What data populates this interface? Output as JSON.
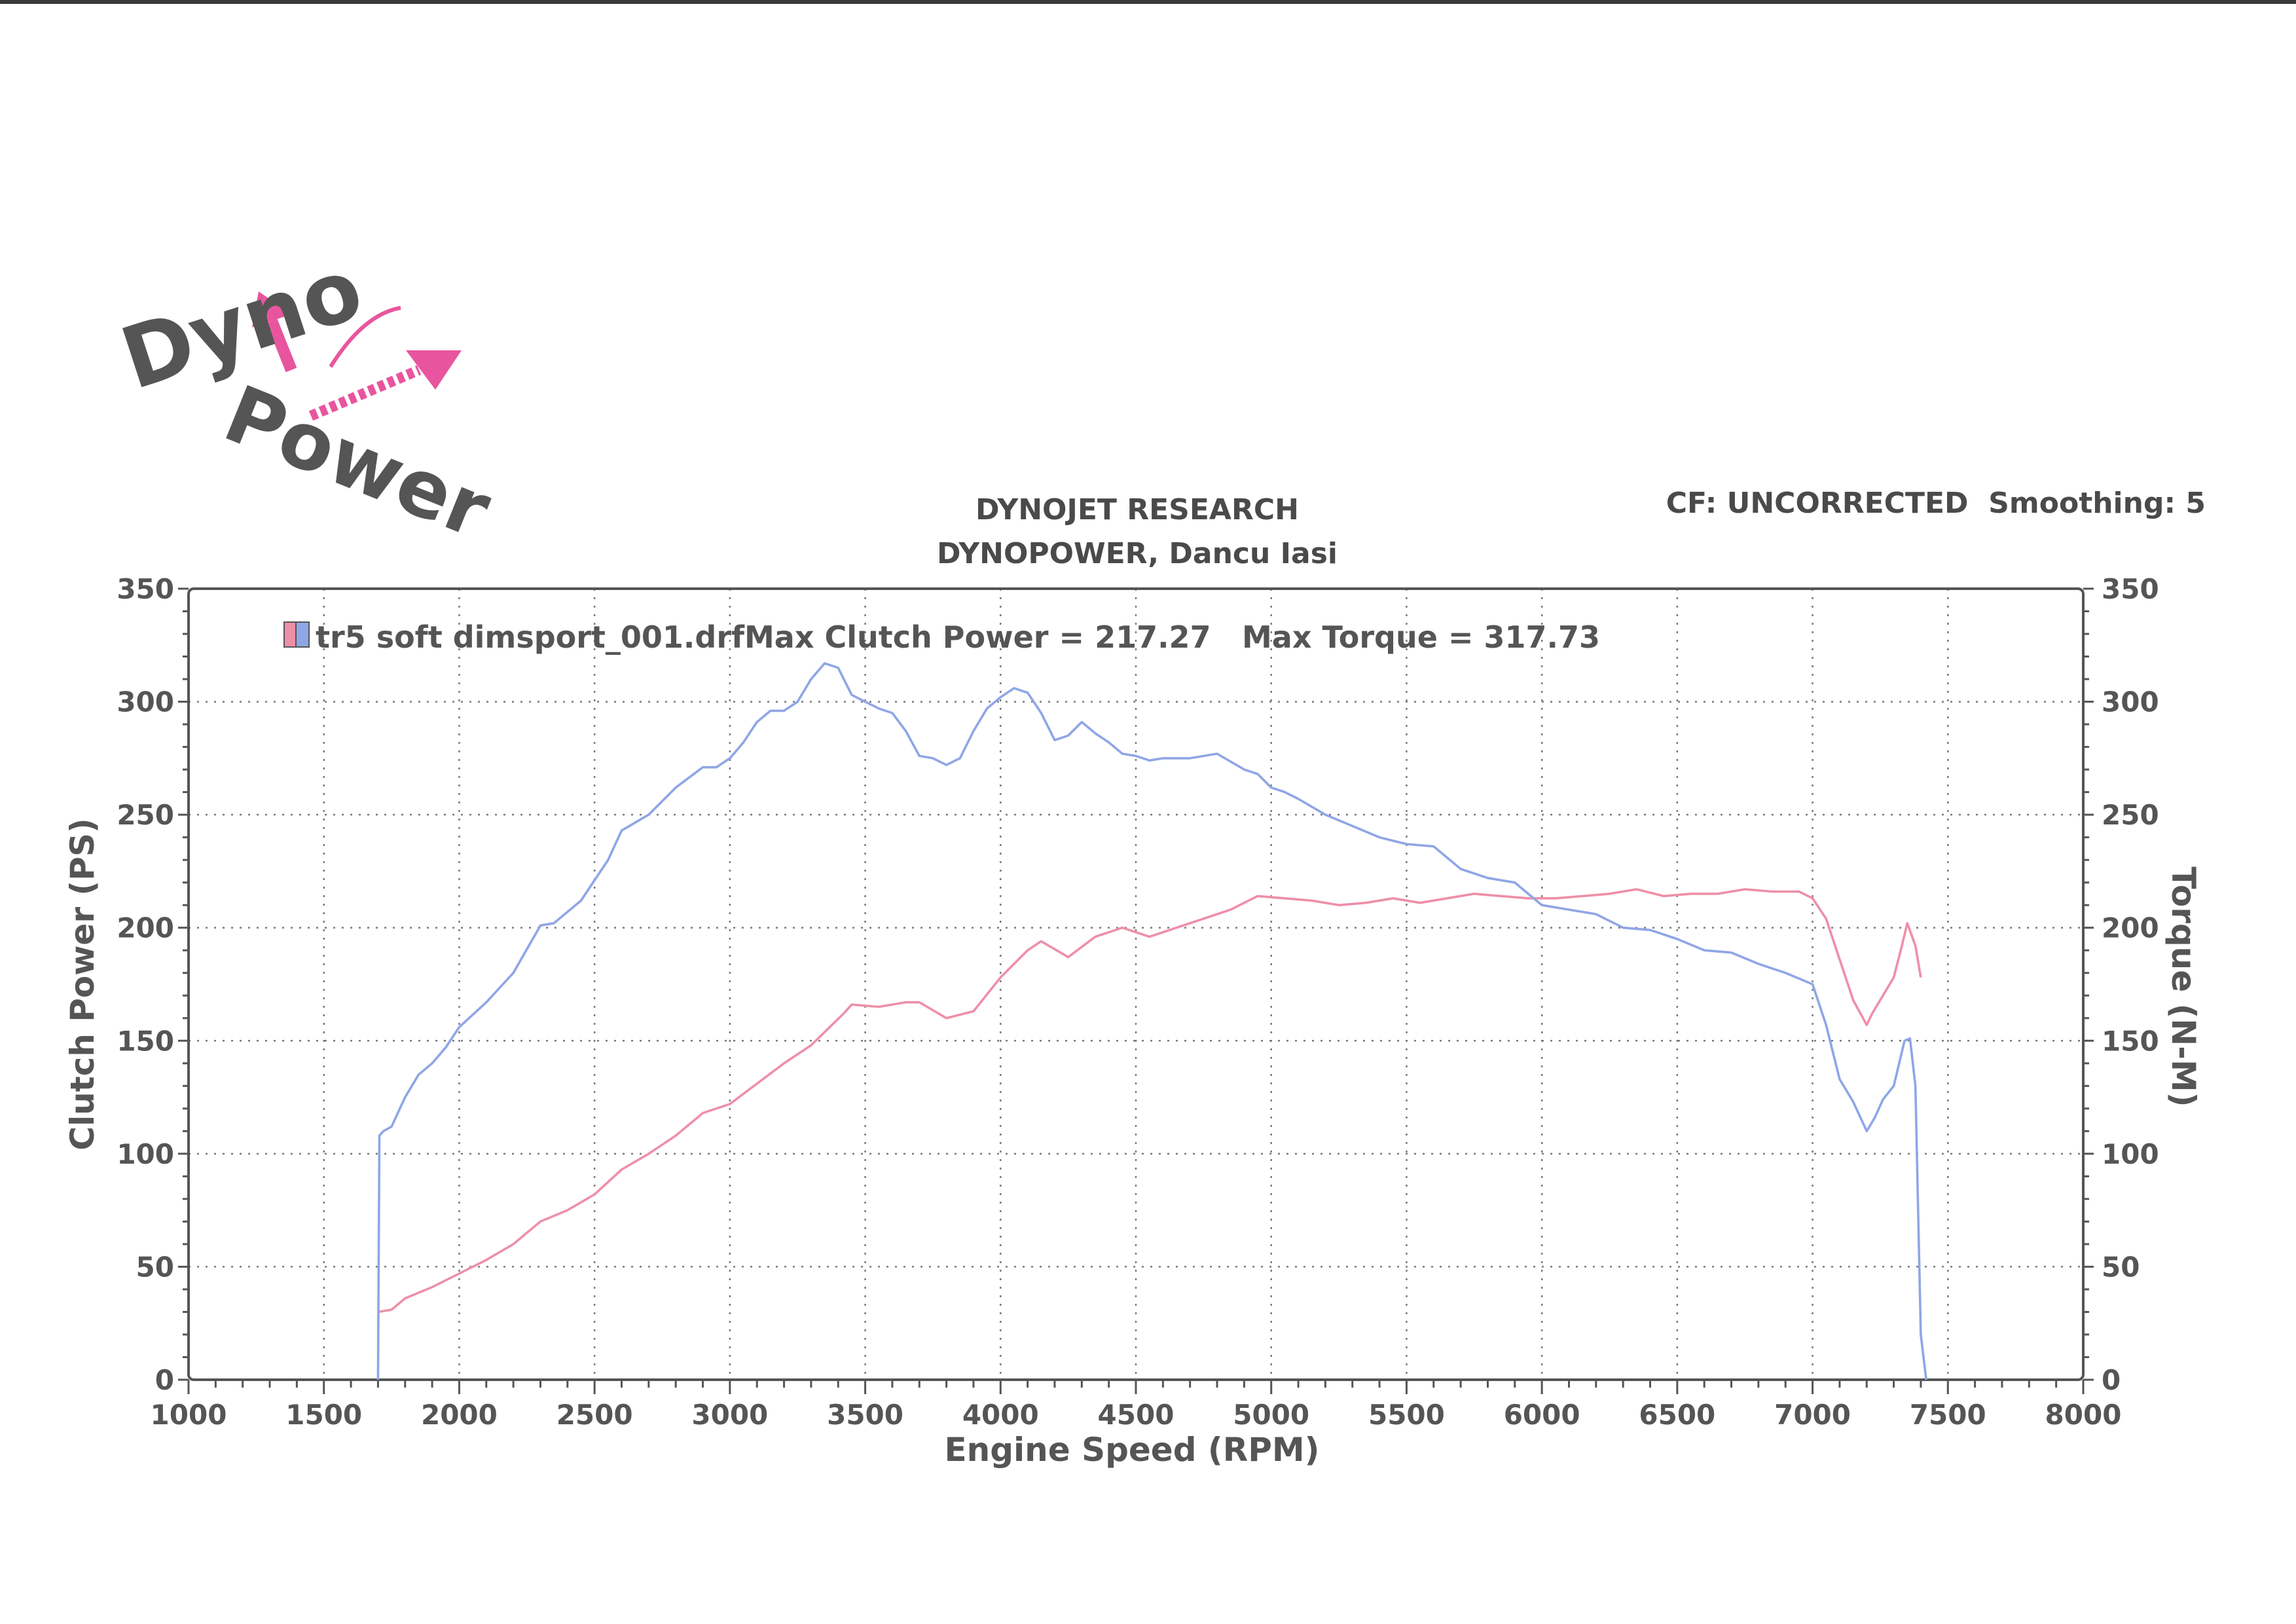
{
  "logo": {
    "text": "Dyno Power",
    "colors": {
      "text": "#555555",
      "arrows": "#e8559e"
    }
  },
  "header": {
    "title_line1": "DYNOJET RESEARCH",
    "title_line2": "DYNOPOWER, Dancu Iasi",
    "correction": "CF: UNCORRECTED  Smoothing: 5"
  },
  "legend": {
    "run_name": "tr5 soft dimsport_001.drf",
    "max_power_text": "Max Clutch Power = 217.27",
    "max_torque_text": "Max Torque = 317.73"
  },
  "colors": {
    "power": "#8fa6e6",
    "torque": "#ee8fa8",
    "axis": "#555555"
  },
  "chart_data": {
    "type": "line",
    "xlabel": "Engine Speed (RPM)",
    "ylabel": "Clutch Power (PS)",
    "y2label": "Torque (N-M)",
    "xlim": [
      1000,
      8000
    ],
    "ylim": [
      0,
      350
    ],
    "y2lim": [
      0,
      350
    ],
    "xticks": [
      "1000",
      "1500",
      "2000",
      "2500",
      "3000",
      "3500",
      "4000",
      "4500",
      "5000",
      "5500",
      "6000",
      "6500",
      "7000",
      "7500",
      "8000"
    ],
    "yticks": [
      "0",
      "50",
      "100",
      "150",
      "200",
      "250",
      "300",
      "350"
    ],
    "y2ticks": [
      "0",
      "50",
      "100",
      "150",
      "200",
      "250",
      "300",
      "350"
    ],
    "grid": true,
    "legend_position": "top-left",
    "series": [
      {
        "name": "Clutch Power",
        "axis": "left",
        "color": "#ee8fa8",
        "x": [
          1700,
          1750,
          1800,
          1900,
          2000,
          2100,
          2200,
          2300,
          2400,
          2500,
          2600,
          2700,
          2800,
          2900,
          3000,
          3100,
          3200,
          3300,
          3420,
          3450,
          3550,
          3650,
          3700,
          3800,
          3900,
          4000,
          4100,
          4150,
          4250,
          4350,
          4450,
          4550,
          4650,
          4750,
          4850,
          4950,
          5050,
          5150,
          5250,
          5350,
          5450,
          5550,
          5650,
          5750,
          5850,
          5950,
          6050,
          6150,
          6250,
          6350,
          6450,
          6550,
          6650,
          6750,
          6850,
          6950,
          7000,
          7050,
          7100,
          7150,
          7200,
          7220,
          7260,
          7300,
          7330,
          7350,
          7380,
          7400
        ],
        "y": [
          30,
          31,
          36,
          41,
          47,
          53,
          60,
          70,
          75,
          82,
          93,
          100,
          108,
          118,
          122,
          131,
          140,
          148,
          162,
          166,
          165,
          167,
          167,
          160,
          163,
          178,
          190,
          194,
          187,
          196,
          200,
          196,
          200,
          204,
          208,
          214,
          213,
          212,
          210,
          211,
          213,
          211,
          213,
          215,
          214,
          213,
          213,
          214,
          215,
          217,
          214,
          215,
          215,
          217,
          216,
          216,
          213,
          204,
          186,
          168,
          157,
          162,
          170,
          178,
          192,
          202,
          192,
          178
        ]
      },
      {
        "name": "Torque",
        "axis": "right",
        "color": "#8fa6e6",
        "x": [
          1700,
          1705,
          1720,
          1750,
          1800,
          1850,
          1900,
          1950,
          2000,
          2100,
          2200,
          2300,
          2350,
          2450,
          2500,
          2550,
          2600,
          2700,
          2800,
          2900,
          2950,
          3000,
          3050,
          3100,
          3150,
          3200,
          3250,
          3300,
          3350,
          3400,
          3450,
          3500,
          3550,
          3600,
          3650,
          3700,
          3750,
          3800,
          3850,
          3900,
          3950,
          4000,
          4050,
          4100,
          4150,
          4200,
          4250,
          4300,
          4350,
          4400,
          4450,
          4500,
          4550,
          4600,
          4700,
          4800,
          4900,
          4950,
          5000,
          5050,
          5100,
          5200,
          5300,
          5400,
          5500,
          5600,
          5700,
          5800,
          5900,
          6000,
          6100,
          6200,
          6300,
          6400,
          6500,
          6600,
          6700,
          6800,
          6900,
          7000,
          7050,
          7100,
          7150,
          7200,
          7230,
          7260,
          7300,
          7340,
          7360,
          7380,
          7400,
          7420
        ],
        "y": [
          0,
          108,
          110,
          112,
          125,
          135,
          140,
          147,
          156,
          167,
          180,
          201,
          202,
          212,
          221,
          230,
          243,
          250,
          262,
          271,
          271,
          275,
          282,
          291,
          296,
          296,
          300,
          310,
          317,
          315,
          303,
          300,
          297,
          295,
          287,
          276,
          275,
          272,
          275,
          287,
          297,
          302,
          306,
          304,
          295,
          283,
          285,
          291,
          286,
          282,
          277,
          276,
          274,
          275,
          275,
          277,
          270,
          268,
          262,
          260,
          257,
          250,
          245,
          240,
          237,
          236,
          226,
          222,
          220,
          210,
          208,
          206,
          200,
          199,
          195,
          190,
          189,
          184,
          180,
          175,
          157,
          133,
          123,
          110,
          116,
          124,
          130,
          150,
          151,
          130,
          20,
          0
        ]
      }
    ]
  }
}
